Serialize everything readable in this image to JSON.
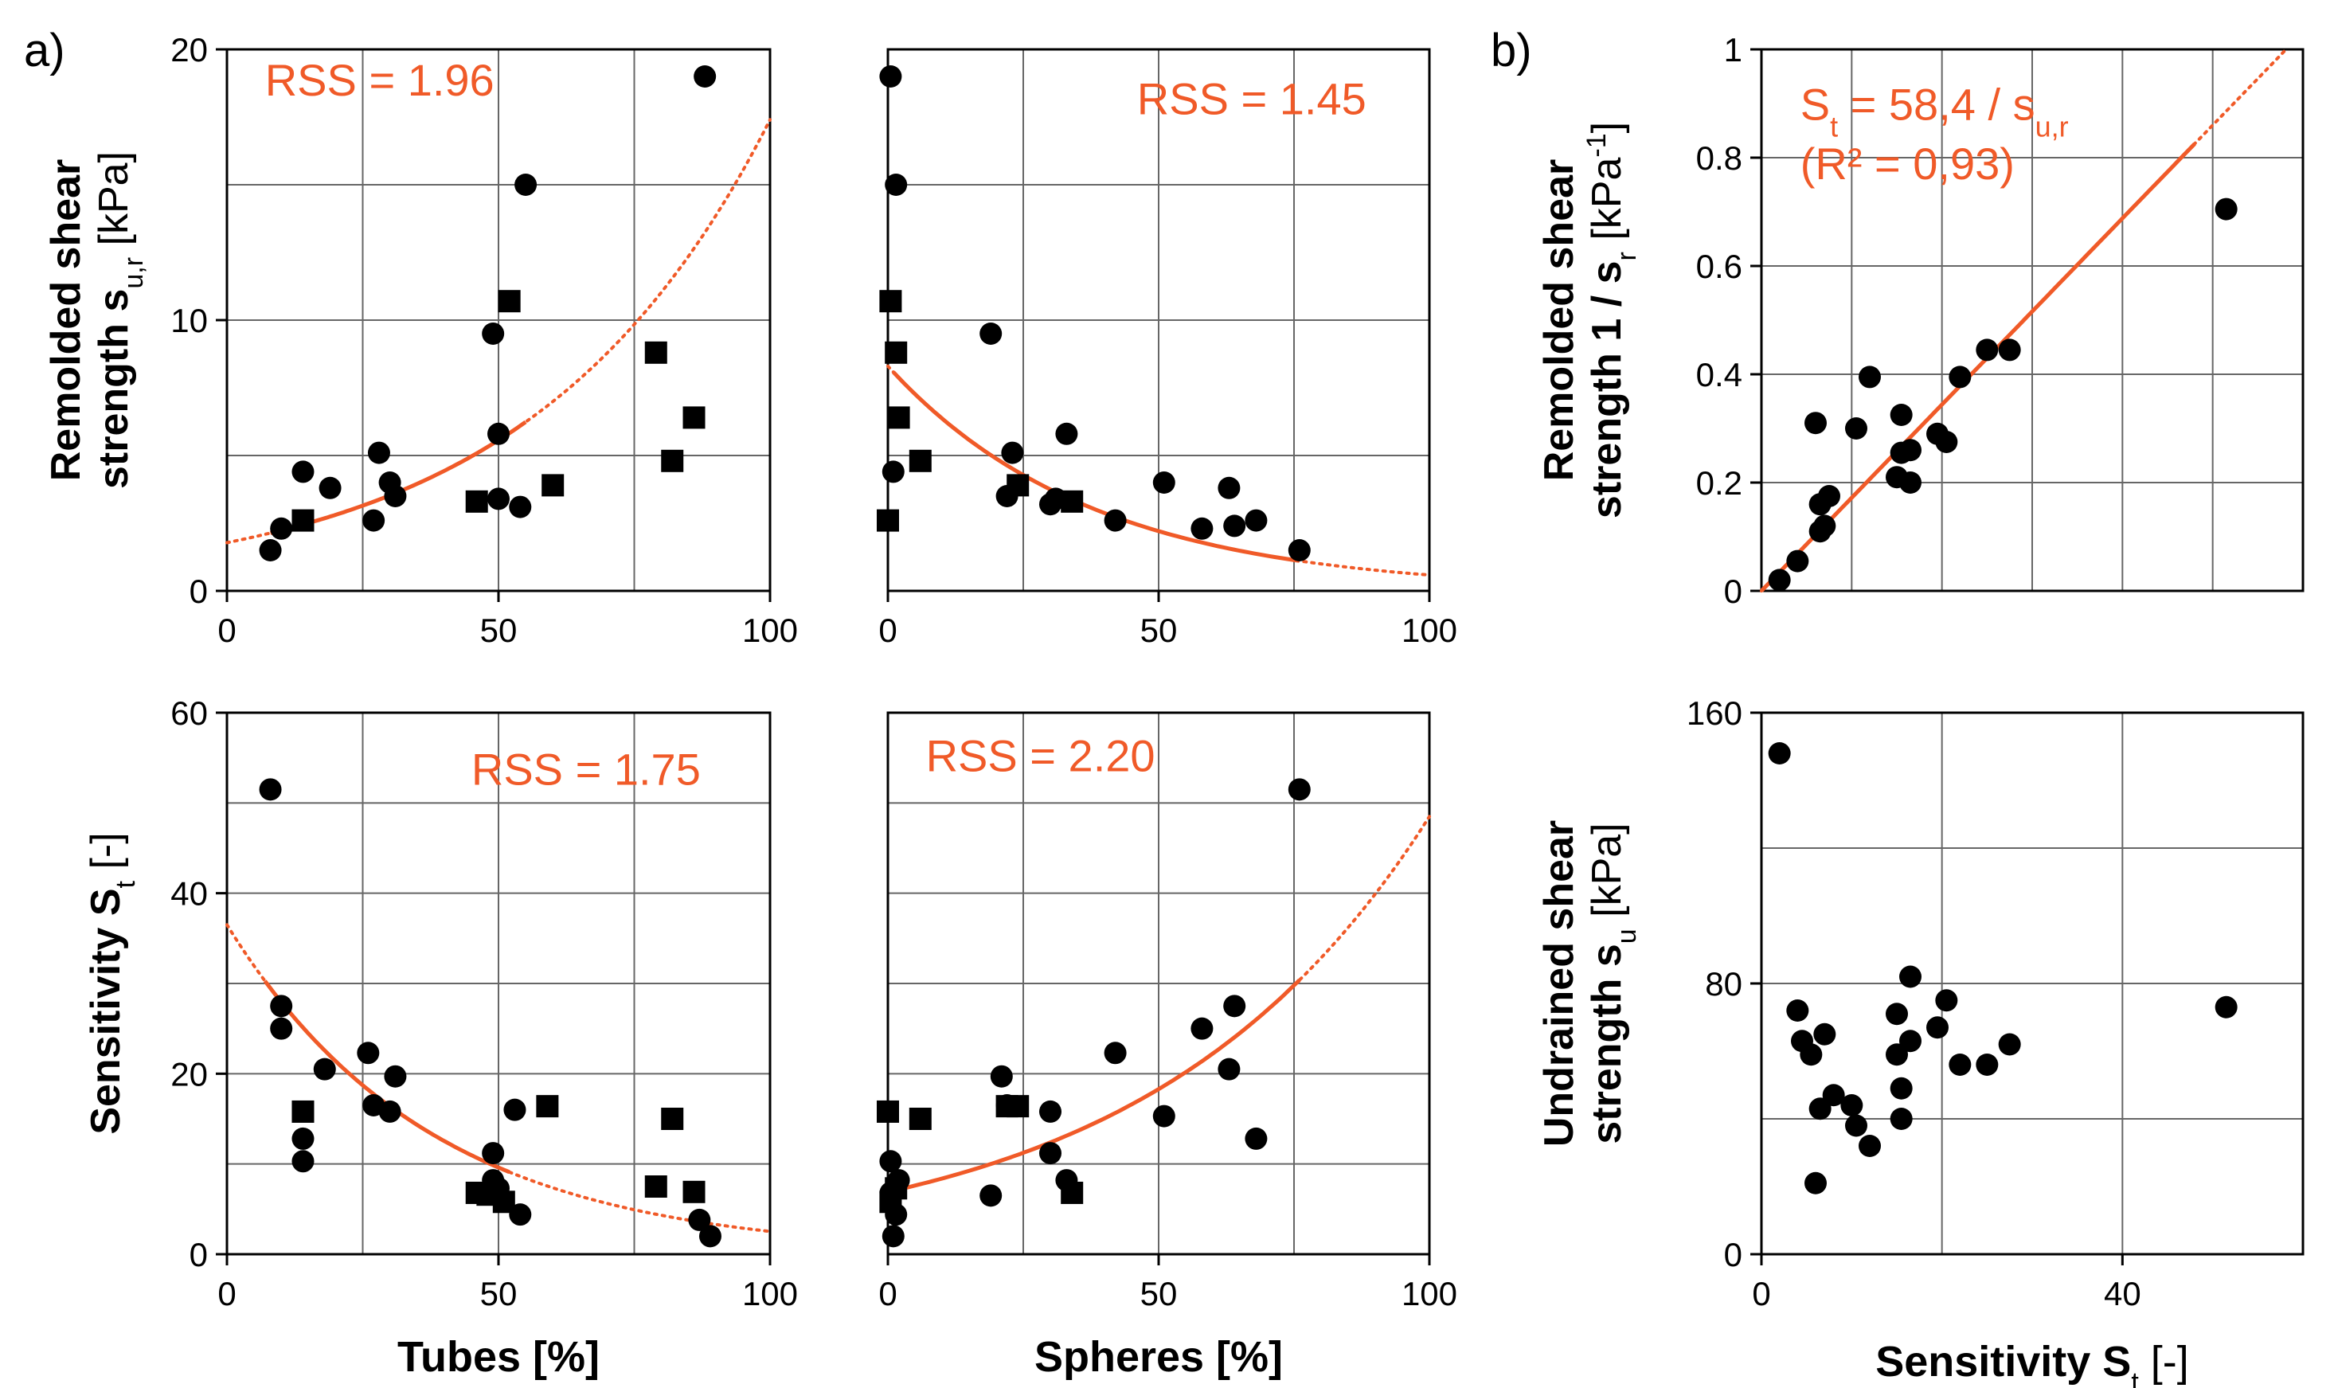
{
  "panel_letters": {
    "a": "a)",
    "b": "b)"
  },
  "chart_data": [
    {
      "id": "tubes_sur",
      "type": "scatter",
      "xlabel": "",
      "ylabel": [
        "Remolded shear",
        "strength s",
        "u,r",
        " [kPa]"
      ],
      "xlim": [
        0,
        100
      ],
      "ylim": [
        0,
        20
      ],
      "xticks": [
        0,
        50,
        100
      ],
      "yticks": [
        0,
        10,
        20
      ],
      "grid": true,
      "annotations": [
        {
          "text": "RSS = 1.96",
          "x": 7,
          "y": 18.3
        }
      ],
      "curve": {
        "kind": "exp",
        "a": 1.78,
        "b": 0.0228,
        "solid": [
          8,
          55
        ],
        "dotted": [
          0,
          100
        ]
      },
      "series": [
        {
          "marker": "circle",
          "x": [
            8,
            10,
            14,
            19,
            27,
            28,
            30,
            31,
            49,
            50,
            50,
            54,
            55,
            88
          ],
          "y": [
            1.5,
            2.3,
            4.4,
            3.8,
            2.6,
            5.1,
            4.0,
            3.5,
            9.5,
            5.8,
            3.4,
            3.1,
            15.0,
            19.0
          ]
        },
        {
          "marker": "square",
          "x": [
            14,
            46,
            52,
            60,
            79,
            82,
            86
          ],
          "y": [
            2.6,
            3.3,
            10.7,
            3.9,
            8.8,
            4.8,
            6.4
          ]
        }
      ]
    },
    {
      "id": "spheres_sur",
      "type": "scatter",
      "xlabel": "",
      "ylabel": [],
      "xlim": [
        0,
        100
      ],
      "ylim": [
        0,
        20
      ],
      "xticks": [
        0,
        50,
        100
      ],
      "yticks": [],
      "xtick_labels_show": true,
      "grid": true,
      "annotations": [
        {
          "text": "RSS = 1.45",
          "x": 46,
          "y": 17.6
        }
      ],
      "curve": {
        "kind": "exp",
        "a": 8.3,
        "b": -0.0265,
        "solid": [
          1,
          76
        ],
        "dotted": [
          0,
          100
        ]
      },
      "series": [
        {
          "marker": "circle",
          "x": [
            0.5,
            1,
            1.5,
            19,
            22,
            23,
            30,
            31,
            33,
            42,
            51,
            58,
            63,
            64,
            68,
            76
          ],
          "y": [
            19.0,
            4.4,
            15.0,
            9.5,
            3.5,
            5.1,
            3.2,
            3.4,
            5.8,
            2.6,
            4.0,
            2.3,
            3.8,
            2.4,
            2.6,
            1.5
          ]
        },
        {
          "marker": "square",
          "x": [
            0,
            0.5,
            1.5,
            2,
            6,
            24,
            34
          ],
          "y": [
            2.6,
            10.7,
            8.8,
            6.4,
            4.8,
            3.9,
            3.3
          ]
        }
      ]
    },
    {
      "id": "tubes_st",
      "type": "scatter",
      "xlabel": "Tubes [%]",
      "ylabel": [
        "Sensitivity S",
        "t",
        " [-]"
      ],
      "xlim": [
        0,
        100
      ],
      "ylim": [
        0,
        60
      ],
      "xticks": [
        0,
        50,
        100
      ],
      "yticks": [
        0,
        20,
        40,
        60
      ],
      "grid": true,
      "annotations": [
        {
          "text": "RSS = 1.75",
          "x": 45,
          "y": 52
        }
      ],
      "curve": {
        "kind": "exp",
        "a": 36.5,
        "b": -0.0267,
        "solid": [
          7,
          52
        ],
        "dotted": [
          0,
          100
        ]
      },
      "series": [
        {
          "marker": "circle",
          "x": [
            8,
            10,
            10,
            14,
            14,
            18,
            26,
            27,
            30,
            31,
            49,
            49,
            50,
            53,
            54,
            87,
            89
          ],
          "y": [
            51.5,
            27.5,
            25.0,
            12.8,
            10.3,
            20.5,
            22.3,
            16.5,
            15.8,
            19.7,
            11.2,
            8.2,
            7.3,
            16.0,
            4.4,
            3.8,
            2.0
          ]
        },
        {
          "marker": "square",
          "x": [
            14,
            46,
            48,
            51,
            59,
            79,
            82,
            86
          ],
          "y": [
            15.8,
            6.8,
            6.6,
            5.8,
            16.4,
            7.5,
            15.0,
            6.9
          ]
        }
      ]
    },
    {
      "id": "spheres_st",
      "type": "scatter",
      "xlabel": "Spheres [%]",
      "ylabel": [],
      "xlim": [
        0,
        100
      ],
      "ylim": [
        0,
        60
      ],
      "xticks": [
        0,
        50,
        100
      ],
      "yticks": [],
      "grid": true,
      "annotations": [
        {
          "text": "RSS = 2.20",
          "x": 7,
          "y": 53.5
        }
      ],
      "curve": {
        "kind": "exp",
        "a": 6.9,
        "b": 0.0195,
        "solid": [
          1,
          76
        ],
        "dotted": [
          0,
          100
        ]
      },
      "series": [
        {
          "marker": "circle",
          "x": [
            0.5,
            0.5,
            1,
            1.5,
            2,
            19,
            21,
            22,
            30,
            30,
            33,
            42,
            51,
            58,
            63,
            64,
            68,
            76
          ],
          "y": [
            10.3,
            6.8,
            2.0,
            4.4,
            8.2,
            6.5,
            19.7,
            16.5,
            15.8,
            11.2,
            8.2,
            22.3,
            15.3,
            25.0,
            20.5,
            27.5,
            12.8,
            51.5
          ]
        },
        {
          "marker": "square",
          "x": [
            0,
            0.5,
            1.5,
            6,
            22,
            24,
            34
          ],
          "y": [
            15.8,
            5.8,
            7.3,
            15.0,
            16.4,
            16.4,
            6.8
          ]
        }
      ]
    },
    {
      "id": "inv_sr_vs_st",
      "type": "scatter",
      "xlabel": "",
      "ylabel": [
        "Remolded shear",
        "strength 1 / s",
        "r",
        " [kPa",
        "-1",
        "]"
      ],
      "xlim": [
        0,
        60
      ],
      "ylim": [
        0,
        1
      ],
      "xticks": [],
      "yticks": [
        0,
        0.2,
        0.4,
        0.6,
        0.8,
        1
      ],
      "ytick_labels": [
        "0",
        "0.2",
        "0.4",
        "0.6",
        "0.8",
        "1"
      ],
      "grid": true,
      "annotations": [
        {
          "text": "S",
          "sub": "t",
          "after": "  =  58,4 / s",
          "sub2": "u,r",
          "x": 4.3,
          "y": 0.87
        },
        {
          "text": "(R² = 0,93)",
          "x": 4.3,
          "y": 0.76
        }
      ],
      "curve": {
        "kind": "linear",
        "m": 0.0172,
        "c": 0.0,
        "solid": [
          0,
          48
        ],
        "dotted": [
          0,
          60
        ]
      },
      "series": [
        {
          "marker": "circle",
          "x": [
            2,
            4,
            6,
            6.5,
            6.5,
            7,
            7.5,
            10.5,
            12,
            15,
            15.5,
            15.5,
            16.5,
            16.5,
            19.5,
            20.5,
            22,
            25,
            27.5,
            51.5
          ],
          "y": [
            0.02,
            0.055,
            0.31,
            0.11,
            0.16,
            0.12,
            0.175,
            0.3,
            0.395,
            0.21,
            0.255,
            0.325,
            0.2,
            0.26,
            0.29,
            0.275,
            0.395,
            0.445,
            0.445,
            0.705
          ]
        }
      ]
    },
    {
      "id": "su_vs_st",
      "type": "scatter",
      "xlabel": "Sensitivity S",
      "xlabel_sub": "t",
      "xlabel_after": " [-]",
      "ylabel": [
        "Undrained shear",
        "strength s",
        "u",
        " [kPa]"
      ],
      "xlim": [
        0,
        60
      ],
      "ylim": [
        0,
        160
      ],
      "xticks": [
        0,
        40
      ],
      "xticks_grid": [
        20,
        40
      ],
      "yticks": [
        0,
        80,
        160
      ],
      "yticks_grid": [
        40,
        80,
        120
      ],
      "grid": true,
      "annotations": [],
      "series": [
        {
          "marker": "circle",
          "x": [
            2,
            4,
            4.5,
            5.5,
            6,
            6.5,
            7,
            8,
            10,
            10.5,
            12,
            15,
            15,
            15.5,
            15.5,
            16.5,
            16.5,
            19.5,
            20.5,
            22,
            25,
            27.5,
            51.5
          ],
          "y": [
            148,
            72,
            63,
            59,
            21,
            43,
            65,
            47,
            44,
            38,
            32,
            71,
            59,
            40,
            49,
            82,
            63,
            67,
            75,
            56,
            56,
            62,
            73
          ]
        }
      ]
    }
  ],
  "colors": {
    "fit": "#f05a28",
    "marker": "#000000",
    "grid": "#666666",
    "axis": "#000000"
  }
}
